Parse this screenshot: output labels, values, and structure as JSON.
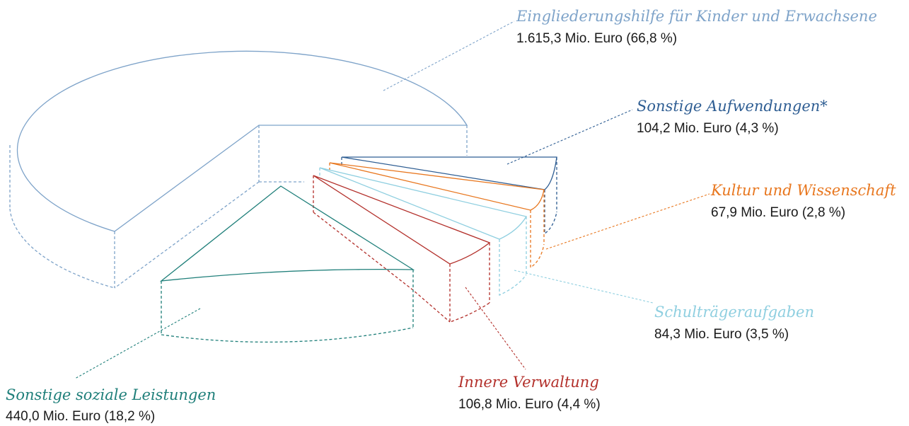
{
  "chart_data": {
    "type": "pie",
    "title": "",
    "slices": [
      {
        "label": "Eingliederungshilfe für Kinder und Erwachsene",
        "value": 1615.3,
        "value_text": "1.615,3 Mio. Euro (66,8 %)",
        "percent": 66.8,
        "color": "#7ea3c9"
      },
      {
        "label": "Sonstige Aufwendungen*",
        "value": 104.2,
        "value_text": "104,2 Mio. Euro (4,3 %)",
        "percent": 4.3,
        "color": "#2f5e93"
      },
      {
        "label": "Kultur und Wissenschaft",
        "value": 67.9,
        "value_text": "67,9 Mio. Euro (2,8 %)",
        "percent": 2.8,
        "color": "#e8771f"
      },
      {
        "label": "Schulträgeraufgaben",
        "value": 84.3,
        "value_text": "84,3 Mio. Euro (3,5 %)",
        "percent": 3.5,
        "color": "#8fcfe0"
      },
      {
        "label": "Innere Verwaltung",
        "value": 106.8,
        "value_text": "106,8 Mio. Euro (4,4 %)",
        "percent": 4.4,
        "color": "#b3302b"
      },
      {
        "label": "Sonstige soziale Leistungen",
        "value": 440.0,
        "value_text": "440,0 Mio. Euro (18,2 %)",
        "percent": 18.2,
        "color": "#1f7f7a"
      }
    ],
    "legend": "none",
    "style": "exploded 3d outline pie with leader lines"
  }
}
